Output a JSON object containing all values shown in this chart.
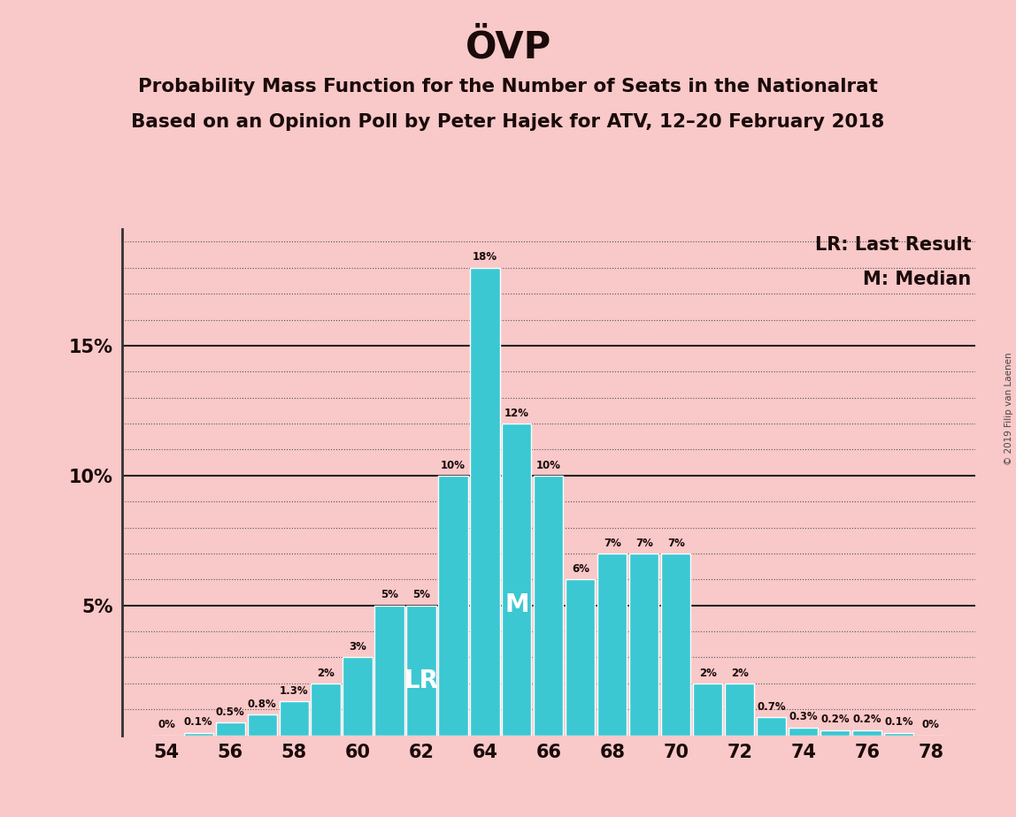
{
  "title": "ÖVP",
  "subtitle1": "Probability Mass Function for the Number of Seats in the Nationalrat",
  "subtitle2": "Based on an Opinion Poll by Peter Hajek for ATV, 12–20 February 2018",
  "legend_lr": "LR: Last Result",
  "legend_m": "M: Median",
  "watermark": "© 2019 Filip van Laenen",
  "seats": [
    54,
    55,
    56,
    57,
    58,
    59,
    60,
    61,
    62,
    63,
    64,
    65,
    66,
    67,
    68,
    69,
    70,
    71,
    72,
    73,
    74,
    75,
    76,
    77,
    78
  ],
  "probabilities": [
    0.0,
    0.1,
    0.5,
    0.8,
    1.3,
    2.0,
    3.0,
    5.0,
    5.0,
    10.0,
    18.0,
    12.0,
    10.0,
    6.0,
    7.0,
    7.0,
    7.0,
    2.0,
    2.0,
    0.7,
    0.3,
    0.2,
    0.2,
    0.1,
    0.0
  ],
  "bar_color": "#3bc8d3",
  "background_color": "#f9c8c8",
  "text_color": "#1a0a0a",
  "lr_seat": 62,
  "median_seat": 65,
  "ylim": [
    0,
    19.5
  ],
  "bar_width": 0.92,
  "minor_grid_color": "#555555",
  "major_grid_color": "#222222"
}
